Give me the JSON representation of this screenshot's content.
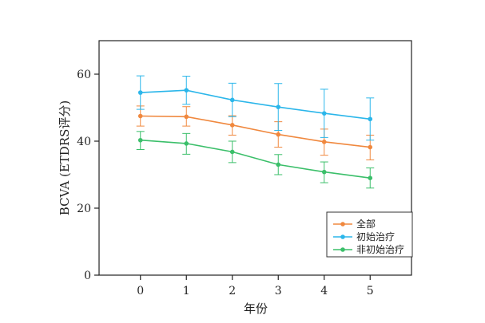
{
  "chart_data": {
    "type": "line",
    "title": "",
    "xlabel": "年份",
    "ylabel": "BCVA (ETDRS评分)",
    "x": [
      0,
      1,
      2,
      3,
      4,
      5
    ],
    "x_tick_labels": [
      "0",
      "1",
      "2",
      "3",
      "4",
      "5"
    ],
    "xlim": [
      -0.9,
      5.9
    ],
    "ylim": [
      0,
      70
    ],
    "y_ticks": [
      0,
      20,
      40,
      60
    ],
    "y_tick_labels": [
      "0",
      "20",
      "40",
      "60"
    ],
    "grid": false,
    "legend_position": "bottom-right",
    "series": [
      {
        "name": "全部",
        "color": "#f0883e",
        "values": [
          47.5,
          47.3,
          44.8,
          42.0,
          39.8,
          38.2
        ],
        "err_upper": [
          3.0,
          3.0,
          2.8,
          3.8,
          3.8,
          3.6
        ],
        "err_lower": [
          3.0,
          2.8,
          3.0,
          3.8,
          4.0,
          3.8
        ]
      },
      {
        "name": "初始治疗",
        "color": "#2bb6ea",
        "values": [
          54.5,
          55.2,
          52.3,
          50.2,
          48.3,
          46.6
        ],
        "err_upper": [
          5.0,
          4.2,
          5.0,
          7.0,
          7.2,
          6.3
        ],
        "err_lower": [
          5.0,
          4.2,
          5.0,
          7.0,
          7.2,
          6.3
        ]
      },
      {
        "name": "非初始治疗",
        "color": "#3bbf6a",
        "values": [
          40.3,
          39.3,
          36.8,
          33.0,
          30.8,
          29.0
        ],
        "err_upper": [
          2.6,
          3.0,
          3.2,
          3.0,
          3.0,
          3.0
        ],
        "err_lower": [
          2.8,
          3.2,
          3.2,
          3.0,
          3.2,
          3.0
        ]
      }
    ]
  }
}
